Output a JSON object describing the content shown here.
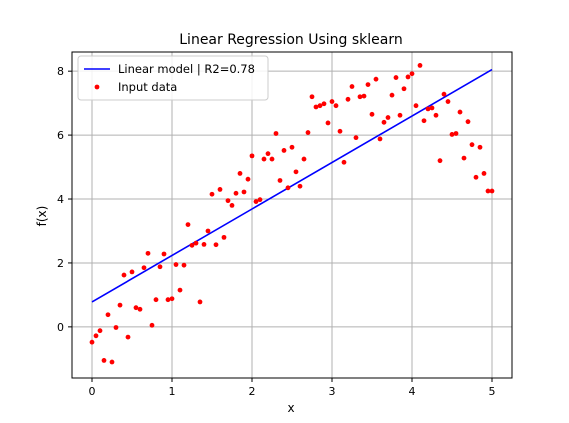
{
  "chart_data": {
    "type": "scatter",
    "title": "Linear Regression Using sklearn",
    "xlabel": "x",
    "ylabel": "f(x)",
    "xlim": [
      -0.25,
      5.25
    ],
    "ylim": [
      -1.6,
      8.6
    ],
    "xticks": [
      "0",
      "1",
      "2",
      "3",
      "4",
      "5"
    ],
    "yticks": [
      "0",
      "2",
      "4",
      "6",
      "8"
    ],
    "grid": true,
    "legend_position": "top-left",
    "series": [
      {
        "name": "Linear model | R2=0.78",
        "type": "line",
        "color": "#0000ff",
        "x": [
          0,
          5
        ],
        "y": [
          0.78,
          8.05
        ]
      },
      {
        "name": "Input data",
        "type": "scatter",
        "color": "#ff0000",
        "x": [
          0.0,
          0.05,
          0.1,
          0.15,
          0.2,
          0.25,
          0.3,
          0.35,
          0.4,
          0.45,
          0.5,
          0.55,
          0.6,
          0.65,
          0.7,
          0.75,
          0.8,
          0.85,
          0.9,
          0.95,
          1.0,
          1.05,
          1.1,
          1.15,
          1.2,
          1.25,
          1.3,
          1.35,
          1.4,
          1.45,
          1.5,
          1.55,
          1.6,
          1.65,
          1.7,
          1.75,
          1.8,
          1.85,
          1.9,
          1.95,
          2.0,
          2.05,
          2.1,
          2.15,
          2.2,
          2.25,
          2.3,
          2.35,
          2.4,
          2.45,
          2.5,
          2.55,
          2.6,
          2.65,
          2.7,
          2.75,
          2.8,
          2.85,
          2.9,
          2.95,
          3.0,
          3.05,
          3.1,
          3.15,
          3.2,
          3.25,
          3.3,
          3.35,
          3.4,
          3.45,
          3.5,
          3.55,
          3.6,
          3.65,
          3.7,
          3.75,
          3.8,
          3.85,
          3.9,
          3.95,
          4.0,
          4.05,
          4.1,
          4.15,
          4.2,
          4.25,
          4.3,
          4.35,
          4.4,
          4.45,
          4.5,
          4.55,
          4.6,
          4.65,
          4.7,
          4.75,
          4.8,
          4.85,
          4.9,
          4.95,
          5.0
        ],
        "y": [
          -0.48,
          -0.28,
          -0.12,
          -1.05,
          0.38,
          -1.1,
          -0.02,
          0.68,
          1.62,
          -0.32,
          1.72,
          0.6,
          0.55,
          1.85,
          2.3,
          0.05,
          0.85,
          1.88,
          2.28,
          0.85,
          0.88,
          1.95,
          1.15,
          1.93,
          3.2,
          2.55,
          2.62,
          0.78,
          2.58,
          3.0,
          4.15,
          2.57,
          4.3,
          2.8,
          3.95,
          3.8,
          4.18,
          4.8,
          4.22,
          4.62,
          5.35,
          3.92,
          3.98,
          5.25,
          5.42,
          5.25,
          6.05,
          4.58,
          5.52,
          4.35,
          5.62,
          4.85,
          4.4,
          5.25,
          6.08,
          7.2,
          6.88,
          6.92,
          6.98,
          6.38,
          7.05,
          6.92,
          6.12,
          5.15,
          7.12,
          7.52,
          5.92,
          7.2,
          7.22,
          7.58,
          6.65,
          7.75,
          5.88,
          6.4,
          6.55,
          7.25,
          7.8,
          6.62,
          7.45,
          7.82,
          7.92,
          6.92,
          8.18,
          6.45,
          6.82,
          6.85,
          6.62,
          5.2,
          7.28,
          7.05,
          6.02,
          6.05,
          6.72,
          5.28,
          6.42,
          5.7,
          4.68,
          5.62,
          4.8,
          4.25,
          4.25
        ]
      }
    ]
  }
}
